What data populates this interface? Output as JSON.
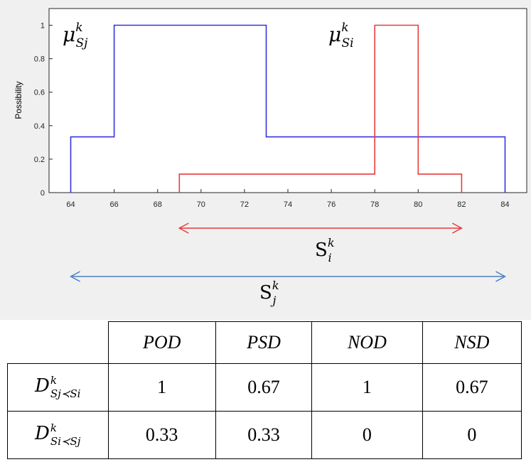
{
  "chart_data": {
    "type": "line",
    "ylabel": "Possibility",
    "xlim": [
      63,
      85
    ],
    "ylim": [
      0,
      1.1
    ],
    "x_ticks": [
      "64",
      "66",
      "68",
      "70",
      "72",
      "74",
      "76",
      "78",
      "80",
      "82",
      "84"
    ],
    "y_ticks": [
      "0",
      "0.2",
      "0.4",
      "0.6",
      "0.8",
      "1"
    ],
    "series": [
      {
        "name": "μ_Sj^k",
        "color": "#3333dd",
        "x": [
          64,
          64,
          66,
          66,
          73,
          73,
          84,
          84
        ],
        "y": [
          0,
          0.333,
          0.333,
          1,
          1,
          0.333,
          0.333,
          0
        ]
      },
      {
        "name": "μ_Si^k",
        "color": "#e83c3c",
        "x": [
          69,
          69,
          78,
          78,
          80,
          80,
          82,
          82
        ],
        "y": [
          0,
          0.111,
          0.111,
          1,
          1,
          0.111,
          0.111,
          0
        ]
      }
    ],
    "annotations": [
      {
        "text": "S_i^k",
        "range": [
          69,
          82
        ],
        "color": "#e83c3c"
      },
      {
        "text": "S_j^k",
        "range": [
          64,
          84
        ],
        "color": "#4a7fc0"
      }
    ]
  },
  "labels": {
    "mu_main": "μ",
    "mu_sup": "k",
    "mu_j_sub": "Sj",
    "mu_i_sub": "Si",
    "s_main": "S",
    "s_sup": "k",
    "s_i_sub": "i",
    "s_j_sub": "j"
  },
  "table": {
    "headers": [
      "POD",
      "PSD",
      "NOD",
      "NSD"
    ],
    "rows": [
      {
        "label_main": "D",
        "label_sup": "k",
        "label_sub": "Sj≺Si",
        "values": [
          "1",
          "0.67",
          "1",
          "0.67"
        ]
      },
      {
        "label_main": "D",
        "label_sup": "k",
        "label_sub": "Si≺Sj",
        "values": [
          "0.33",
          "0.33",
          "0",
          "0"
        ]
      }
    ]
  },
  "colors": {
    "blue": "#3333dd",
    "red": "#e83c3c",
    "arrow_blue": "#4a7fc0",
    "panel_bg": "#f0f0f0"
  }
}
